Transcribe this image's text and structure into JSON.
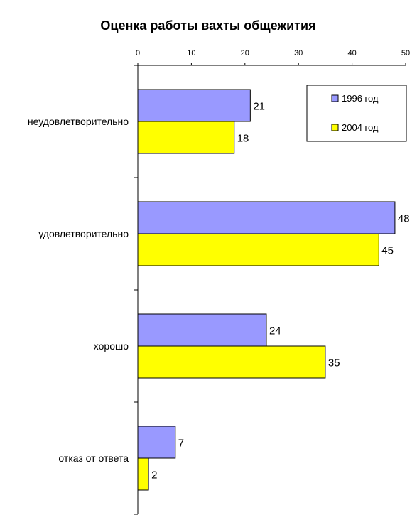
{
  "chart_data": {
    "type": "bar",
    "orientation": "horizontal",
    "title": "Оценка работы вахты общежития",
    "categories": [
      "неудовлетворительно",
      "удовлетворительно",
      "хорошо",
      "отказ от ответа"
    ],
    "series": [
      {
        "name": "1996 год",
        "values": [
          21,
          48,
          24,
          7
        ],
        "color": "#9999FF"
      },
      {
        "name": "2004 год",
        "values": [
          18,
          45,
          35,
          2
        ],
        "color": "#FFFF00"
      }
    ],
    "xlim": [
      0,
      50
    ],
    "xticks": [
      0,
      10,
      20,
      30,
      40,
      50
    ],
    "x_axis_position": "top",
    "legend_position": "top-right",
    "grid": false
  }
}
